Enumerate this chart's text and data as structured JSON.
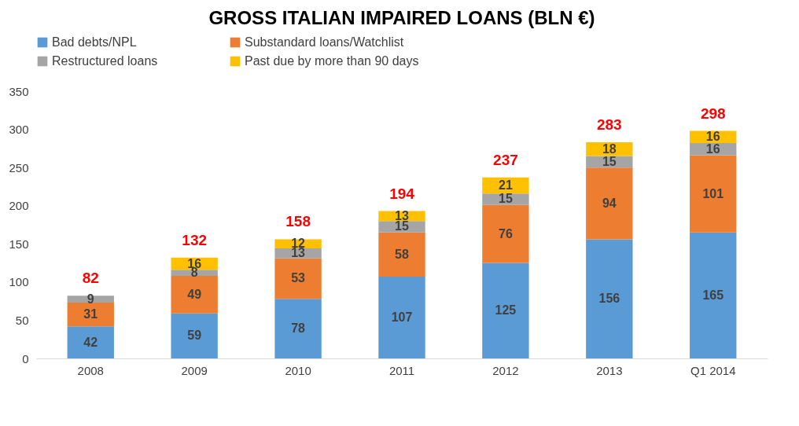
{
  "chart_data": {
    "type": "bar",
    "title": "GROSS ITALIAN IMPAIRED LOANS (BLN €)",
    "stacked": true,
    "data_labels": true,
    "legend": "top",
    "grid": false,
    "categories": [
      "2008",
      "2009",
      "2010",
      "2011",
      "2012",
      "2013",
      "Q1 2014"
    ],
    "series": [
      {
        "name": "Bad debts/NPL",
        "color": "#5b9bd5",
        "values": [
          42,
          59,
          78,
          107,
          125,
          156,
          165
        ]
      },
      {
        "name": "Substandard loans/Watchlist",
        "color": "#ed7d31",
        "values": [
          31,
          49,
          53,
          58,
          76,
          94,
          101
        ]
      },
      {
        "name": "Restructured loans",
        "color": "#a5a5a5",
        "values": [
          9,
          8,
          13,
          15,
          15,
          15,
          16
        ]
      },
      {
        "name": "Past due by more than 90 days",
        "color": "#ffc000",
        "values": [
          null,
          16,
          12,
          13,
          21,
          18,
          16
        ]
      }
    ],
    "totals": [
      "82",
      "132",
      "158",
      "194",
      "237",
      "283",
      "298"
    ],
    "ylim": [
      0,
      350
    ],
    "yticks": [
      0,
      50,
      100,
      150,
      200,
      250,
      300,
      350
    ]
  }
}
